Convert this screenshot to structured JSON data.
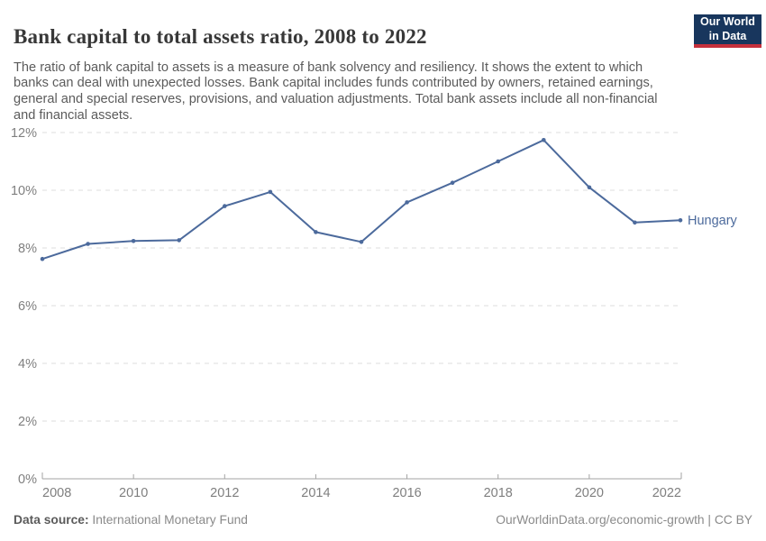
{
  "header": {
    "title": "Bank capital to total assets ratio, 2008 to 2022",
    "subtitle": "The ratio of bank capital to assets is a measure of bank solvency and resiliency. It shows the extent to which banks can deal with unexpected losses. Bank capital includes funds contributed by owners, retained earnings, general and special reserves, provisions, and valuation adjustments. Total bank assets include all non-financial and financial assets.",
    "logo": {
      "line1": "Our World",
      "line2": "in Data"
    }
  },
  "chart_data": {
    "type": "line",
    "title": "Bank capital to total assets ratio, 2008 to 2022",
    "x": [
      2008,
      2009,
      2010,
      2011,
      2012,
      2013,
      2014,
      2015,
      2016,
      2017,
      2018,
      2019,
      2020,
      2021,
      2022
    ],
    "series": [
      {
        "name": "Hungary",
        "color": "#4c6a9c",
        "values": [
          7.62,
          8.14,
          8.24,
          8.27,
          9.45,
          9.94,
          8.55,
          8.21,
          9.58,
          10.26,
          11.0,
          11.74,
          10.1,
          8.88,
          8.96
        ]
      }
    ],
    "xlabel": "",
    "ylabel": "",
    "ylim": [
      0,
      12
    ],
    "yticks": [
      0,
      2,
      4,
      6,
      8,
      10,
      12
    ],
    "ytick_suffix": "%",
    "xticks": [
      2008,
      2010,
      2012,
      2014,
      2016,
      2018,
      2020,
      2022
    ],
    "grid": "horizontal-dashed",
    "legend_position": "end-of-line"
  },
  "footer": {
    "source_label": "Data source:",
    "source_value": " International Monetary Fund",
    "link": "OurWorldinData.org/economic-growth | CC BY"
  },
  "colors": {
    "line": "#4c6a9c",
    "grid": "#dddddd",
    "axis": "#a3a3a3",
    "tick_text": "#7f7f7f",
    "title_text": "#383838",
    "subtitle_text": "#5b5b5b",
    "footer_text": "#8a8a8a",
    "logo_bg": "#18365d",
    "logo_accent": "#c5303c"
  }
}
